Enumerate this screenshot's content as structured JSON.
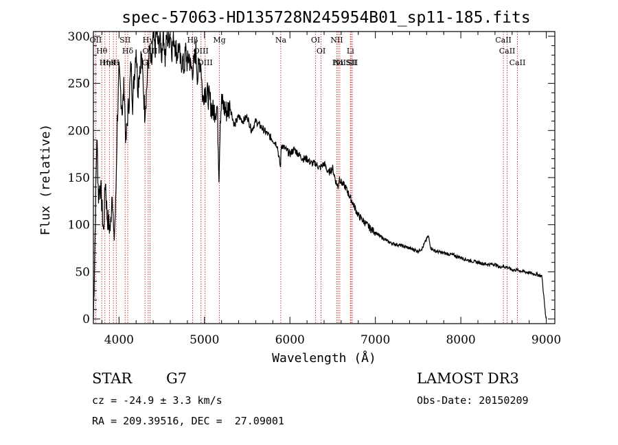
{
  "chart_data": {
    "type": "line",
    "title": "spec-57063-HD135728N245954B01_sp11-185.fits",
    "xlabel": "Wavelength (Å)",
    "ylabel": "Flux (relative)",
    "xlim": [
      3700,
      9100
    ],
    "ylim": [
      -5,
      305
    ],
    "x_ticks": [
      4000,
      5000,
      6000,
      7000,
      8000,
      9000
    ],
    "y_ticks": [
      0,
      50,
      100,
      150,
      200,
      250,
      300
    ],
    "x_tick_labels": [
      "4000",
      "5000",
      "6000",
      "7000",
      "8000",
      "9000"
    ],
    "y_tick_labels": [
      "0",
      "50",
      "100",
      "150",
      "200",
      "250",
      "300"
    ],
    "series": [
      {
        "name": "spectrum",
        "x": [
          3700,
          3720,
          3740,
          3760,
          3780,
          3800,
          3820,
          3840,
          3860,
          3880,
          3900,
          3920,
          3940,
          3960,
          3980,
          4000,
          4020,
          4040,
          4060,
          4080,
          4100,
          4120,
          4140,
          4160,
          4180,
          4200,
          4220,
          4240,
          4260,
          4280,
          4300,
          4320,
          4340,
          4360,
          4380,
          4400,
          4420,
          4440,
          4460,
          4480,
          4500,
          4520,
          4540,
          4560,
          4580,
          4600,
          4620,
          4640,
          4660,
          4680,
          4700,
          4720,
          4740,
          4760,
          4780,
          4800,
          4820,
          4840,
          4860,
          4880,
          4900,
          4920,
          4940,
          4960,
          4980,
          5000,
          5050,
          5100,
          5150,
          5170,
          5185,
          5200,
          5250,
          5300,
          5350,
          5400,
          5450,
          5500,
          5550,
          5600,
          5650,
          5700,
          5750,
          5800,
          5850,
          5890,
          5895,
          5900,
          5950,
          6000,
          6050,
          6100,
          6150,
          6200,
          6250,
          6300,
          6350,
          6400,
          6450,
          6500,
          6540,
          6563,
          6580,
          6600,
          6650,
          6700,
          6750,
          6800,
          6850,
          6900,
          6950,
          7000,
          7050,
          7100,
          7150,
          7200,
          7300,
          7400,
          7500,
          7550,
          7600,
          7620,
          7650,
          7700,
          7800,
          7900,
          8000,
          8100,
          8200,
          8300,
          8400,
          8450,
          8498,
          8520,
          8542,
          8560,
          8600,
          8662,
          8700,
          8750,
          8800,
          8850,
          8900,
          8950,
          8990,
          9000
        ],
        "y": [
          0,
          90,
          195,
          130,
          145,
          120,
          90,
          150,
          110,
          100,
          95,
          140,
          80,
          120,
          210,
          260,
          240,
          220,
          250,
          185,
          215,
          235,
          270,
          230,
          260,
          290,
          245,
          265,
          280,
          255,
          220,
          240,
          270,
          285,
          265,
          300,
          285,
          305,
          290,
          300,
          280,
          310,
          275,
          300,
          295,
          305,
          285,
          300,
          290,
          280,
          290,
          270,
          275,
          265,
          285,
          270,
          280,
          265,
          265,
          270,
          285,
          255,
          275,
          270,
          230,
          245,
          235,
          220,
          225,
          155,
          215,
          230,
          220,
          225,
          205,
          215,
          210,
          215,
          200,
          210,
          205,
          200,
          195,
          190,
          185,
          160,
          175,
          185,
          180,
          175,
          180,
          175,
          170,
          170,
          165,
          165,
          160,
          165,
          155,
          160,
          145,
          140,
          150,
          145,
          140,
          130,
          120,
          110,
          105,
          100,
          95,
          92,
          88,
          85,
          82,
          80,
          78,
          75,
          72,
          75,
          85,
          88,
          75,
          72,
          70,
          68,
          65,
          62,
          60,
          58,
          58,
          55,
          56,
          55,
          55,
          54,
          52,
          52,
          51,
          50,
          49,
          48,
          47,
          45,
          5,
          0
        ]
      }
    ],
    "lines": [
      {
        "name": "Hθ",
        "x": 3798
      },
      {
        "name": "OII",
        "x": 3727
      },
      {
        "name": "Hη",
        "x": 3835
      },
      {
        "name": "HeI",
        "x": 3889
      },
      {
        "name": "K",
        "x": 3934
      },
      {
        "name": "H",
        "x": 3968
      },
      {
        "name": "SII",
        "x": 4072
      },
      {
        "name": "Hδ",
        "x": 4102
      },
      {
        "name": "G",
        "x": 4304
      },
      {
        "name": "OIII",
        "x": 4363
      },
      {
        "name": "Hγ",
        "x": 4341
      },
      {
        "name": "Hβ",
        "x": 4861
      },
      {
        "name": "OIII",
        "x": 4959
      },
      {
        "name": "OIII",
        "x": 5007
      },
      {
        "name": "Mg",
        "x": 5175
      },
      {
        "name": "Na",
        "x": 5893
      },
      {
        "name": "OI",
        "x": 6300
      },
      {
        "name": "OI",
        "x": 6364
      },
      {
        "name": "NII",
        "x": 6548
      },
      {
        "name": "Hα",
        "x": 6563
      },
      {
        "name": "NII",
        "x": 6583
      },
      {
        "name": "Li",
        "x": 6708
      },
      {
        "name": "SII",
        "x": 6716
      },
      {
        "name": "SII",
        "x": 6731
      },
      {
        "name": "CaII",
        "x": 8498
      },
      {
        "name": "CaII",
        "x": 8542
      },
      {
        "name": "CaII",
        "x": 8662
      }
    ]
  },
  "info": {
    "object_type": "STAR",
    "subclass": "G7",
    "cz": "cz = -24.9 ± 3.3 km/s",
    "coords": "RA = 209.39516, DEC =  27.09001",
    "survey": "LAMOST DR3",
    "obs_date": "Obs-Date: 20150209"
  },
  "colors": {
    "spectrum": "#000000",
    "line_markers": "#cc3333",
    "axes": "#000000"
  }
}
